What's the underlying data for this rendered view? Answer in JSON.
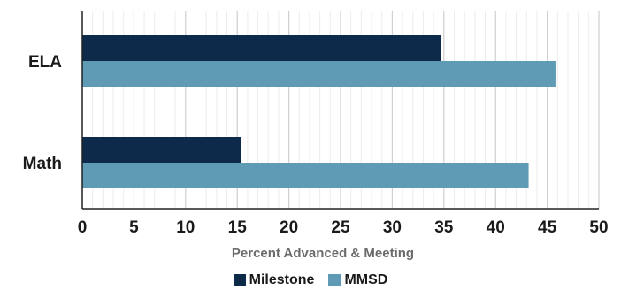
{
  "chart_data": {
    "type": "bar",
    "orientation": "horizontal",
    "categories": [
      "ELA",
      "Math"
    ],
    "series": [
      {
        "name": "Milestone",
        "color": "#0d2a4a",
        "values": [
          34.7,
          15.4
        ]
      },
      {
        "name": "MMSD",
        "color": "#5f9bb5",
        "values": [
          45.8,
          43.2
        ]
      }
    ],
    "xlabel": "Percent Advanced & Meeting",
    "xlim": [
      0,
      50
    ],
    "xticks": [
      "0",
      "5",
      "10",
      "15",
      "20",
      "25",
      "30",
      "35",
      "40",
      "45",
      "50"
    ],
    "grid": true,
    "legend_position": "bottom"
  }
}
